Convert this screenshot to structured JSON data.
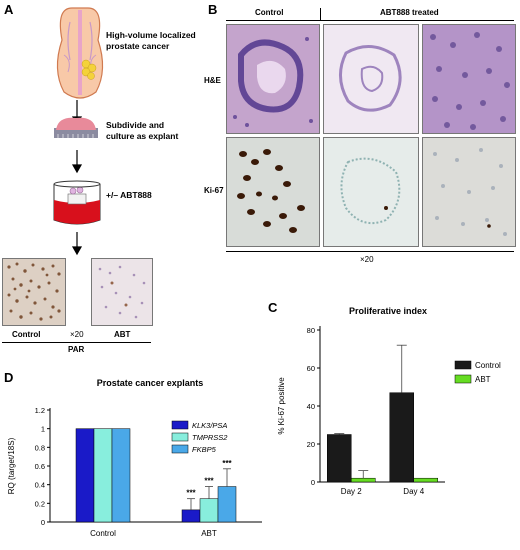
{
  "panels": {
    "a": {
      "letter": "A",
      "step1": "High-volume localized prostate cancer",
      "step2": "Subdivide and culture as explant",
      "step3": "+/– ABT888",
      "micro_left": "Control",
      "micro_mid": "×20",
      "micro_right": "ABT",
      "micro_bottom": "PAR"
    },
    "b": {
      "letter": "B",
      "col_control": "Control",
      "col_treated": "ABT888 treated",
      "row1": "H&E",
      "row2": "Ki-67",
      "magnification": "×20"
    },
    "c": {
      "letter": "C",
      "chart_index": 0
    },
    "d": {
      "letter": "D",
      "chart_index": 1
    }
  },
  "colors": {
    "control_bar": "#1a1a1a",
    "abt_green": "#66dd22",
    "klk3": "#1a1ac8",
    "tmprss2": "#88eedd",
    "fkbp5": "#4aa8e8"
  },
  "chart_data": [
    {
      "type": "bar",
      "title": "Proliferative index",
      "ylabel": "% Ki-67 positive",
      "xlabel": "",
      "categories": [
        "Day 2",
        "Day 4"
      ],
      "ylim": [
        0,
        80
      ],
      "yticks": [
        0,
        20,
        40,
        60,
        80
      ],
      "grid": false,
      "legend_position": "right",
      "series": [
        {
          "name": "Control",
          "values": [
            25,
            47
          ],
          "errors": [
            0.5,
            25
          ],
          "color": "#1a1a1a"
        },
        {
          "name": "ABT",
          "values": [
            2,
            2
          ],
          "errors": [
            4,
            0
          ],
          "color": "#66dd22"
        }
      ]
    },
    {
      "type": "bar",
      "title": "Prostate cancer explants",
      "ylabel": "RQ (target/18S)",
      "xlabel": "",
      "categories": [
        "Control",
        "ABT"
      ],
      "ylim": [
        0,
        1.2
      ],
      "yticks": [
        "0",
        "0.2",
        "0.4",
        "0.6",
        "0.8",
        "1",
        "1.2"
      ],
      "grid": false,
      "legend_position": "top-right",
      "significance": "***",
      "series": [
        {
          "name": "KLK3/PSA",
          "values": [
            1,
            0.13
          ],
          "errors": [
            0,
            0.12
          ],
          "color": "#1a1ac8"
        },
        {
          "name": "TMPRSS2",
          "values": [
            1,
            0.25
          ],
          "errors": [
            0,
            0.13
          ],
          "color": "#88eedd"
        },
        {
          "name": "FKBP5",
          "values": [
            1,
            0.38
          ],
          "errors": [
            0,
            0.19
          ],
          "color": "#4aa8e8"
        }
      ]
    }
  ]
}
